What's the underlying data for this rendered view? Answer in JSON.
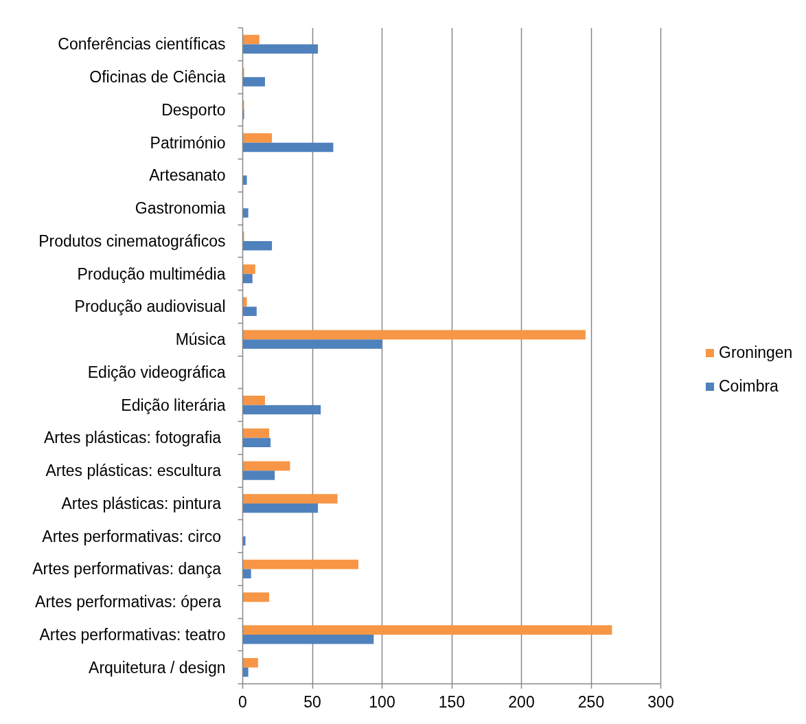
{
  "chart_data": {
    "type": "bar",
    "orientation": "horizontal",
    "categories": [
      "Conferências científicas",
      "Oficinas de Ciência",
      "Desporto",
      "Património",
      "Artesanato",
      "Gastronomia",
      "Produtos cinematográficos",
      "Produção multimédia",
      "Produção audiovisual",
      "Música",
      "Edição videográfica",
      "Edição literária",
      "Artes plásticas:  fotografia",
      "Artes plásticas:  escultura",
      "Artes plásticas:  pintura",
      "Artes performativas:  circo",
      "Artes performativas:  dança",
      "Artes performativas:  ópera",
      "Artes performativas: teatro",
      "Arquitetura / design"
    ],
    "series": [
      {
        "name": "Groningen",
        "color": "#f79646",
        "values": [
          12,
          1,
          1,
          21,
          0,
          0,
          1,
          9,
          3,
          246,
          0,
          16,
          19,
          34,
          68,
          0,
          83,
          19,
          265,
          11
        ]
      },
      {
        "name": "Coimbra",
        "color": "#4f81bd",
        "values": [
          54,
          16,
          1,
          65,
          3,
          4,
          21,
          7,
          10,
          100,
          0,
          56,
          20,
          23,
          54,
          2,
          6,
          0,
          94,
          4
        ]
      }
    ],
    "xlim": [
      0,
      300
    ],
    "xticks": [
      0,
      50,
      100,
      150,
      200,
      250,
      300
    ],
    "grid": "x",
    "legend": "right"
  }
}
